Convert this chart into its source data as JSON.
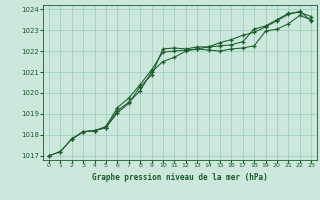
{
  "title": "Graphe pression niveau de la mer (hPa)",
  "bg_color": "#cce8dc",
  "grid_color": "#99ccbb",
  "line_color": "#1a5c2a",
  "xlim": [
    -0.5,
    23.5
  ],
  "ylim": [
    1016.8,
    1024.2
  ],
  "xticks": [
    0,
    1,
    2,
    3,
    4,
    5,
    6,
    7,
    8,
    9,
    10,
    11,
    12,
    13,
    14,
    15,
    16,
    17,
    18,
    19,
    20,
    21,
    22,
    23
  ],
  "yticks": [
    1017,
    1018,
    1019,
    1020,
    1021,
    1022,
    1023,
    1024
  ],
  "series1_x": [
    0,
    1,
    2,
    3,
    4,
    5,
    6,
    7,
    8,
    9,
    10,
    11,
    12,
    13,
    14,
    15,
    16,
    17,
    18,
    19,
    20,
    21,
    22,
    23
  ],
  "series1_y": [
    1017.0,
    1017.2,
    1017.8,
    1018.15,
    1018.2,
    1018.35,
    1019.05,
    1019.5,
    1020.3,
    1020.85,
    1022.1,
    1022.15,
    1022.1,
    1022.2,
    1022.2,
    1022.25,
    1022.3,
    1022.45,
    1023.05,
    1023.2,
    1023.5,
    1023.8,
    1023.85,
    1023.65
  ],
  "series2_x": [
    0,
    1,
    2,
    3,
    4,
    5,
    6,
    7,
    8,
    9,
    10,
    11,
    12,
    13,
    14,
    15,
    16,
    17,
    18,
    19,
    20,
    21,
    22,
    23
  ],
  "series2_y": [
    1017.0,
    1017.2,
    1017.8,
    1018.15,
    1018.2,
    1018.35,
    1019.15,
    1019.55,
    1020.1,
    1021.0,
    1021.5,
    1021.7,
    1022.0,
    1022.1,
    1022.2,
    1022.4,
    1022.55,
    1022.75,
    1022.9,
    1023.15,
    1023.45,
    1023.75,
    1023.9,
    1023.45
  ],
  "series3_x": [
    2,
    3,
    4,
    5,
    6,
    7,
    8,
    9,
    10,
    11,
    12,
    13,
    14,
    15,
    16,
    17,
    18,
    19,
    20,
    21,
    22,
    23
  ],
  "series3_y": [
    1017.8,
    1018.15,
    1018.2,
    1018.4,
    1019.3,
    1019.75,
    1020.4,
    1021.1,
    1021.95,
    1022.0,
    1022.05,
    1022.1,
    1022.05,
    1022.0,
    1022.1,
    1022.15,
    1022.25,
    1022.95,
    1023.05,
    1023.3,
    1023.7,
    1023.5
  ]
}
